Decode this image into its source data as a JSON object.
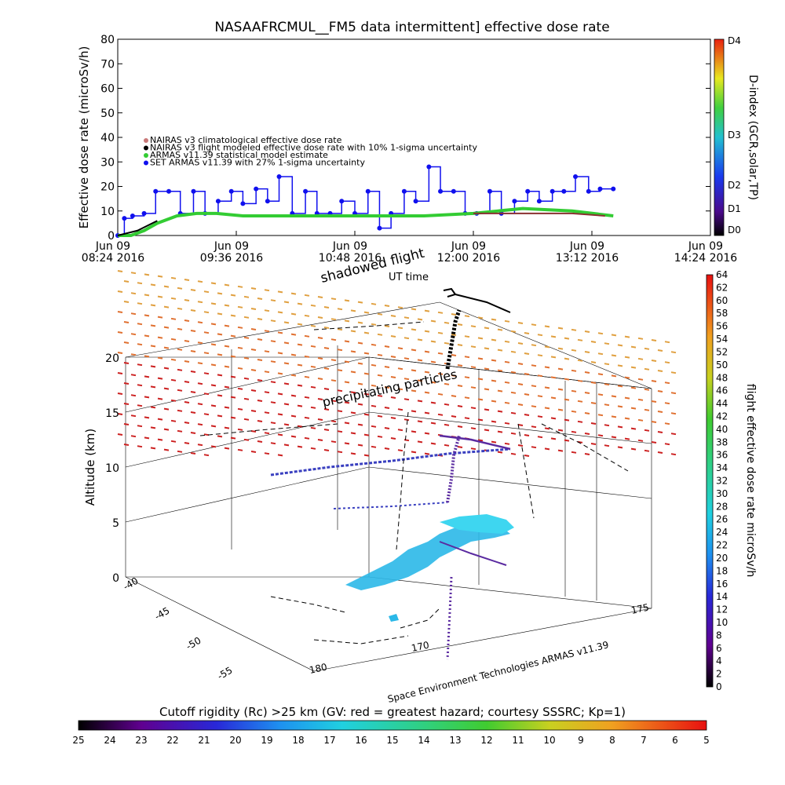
{
  "top": {
    "title": "NASAAFRCMUL__FM5 data intermittent] effective dose rate",
    "ylabel": "Effective dose rate (microSv/h)",
    "yticks": [
      0,
      10,
      20,
      30,
      40,
      50,
      60,
      70,
      80
    ],
    "xticks": [
      {
        "date": "Jun 09",
        "time": "08:24 2016"
      },
      {
        "date": "Jun 09",
        "time": "09:36 2016"
      },
      {
        "date": "Jun 09",
        "time": "10:48 2016"
      },
      {
        "date": "Jun 09",
        "time": "12:00 2016"
      },
      {
        "date": "Jun 09",
        "time": "13:12 2016"
      },
      {
        "date": "Jun 09",
        "time": "14:24 2016"
      }
    ],
    "legend": [
      {
        "label": "NAIRAS v3 climatological effective dose rate",
        "color": "#c87878"
      },
      {
        "label": "NAIRAS v3 flight modeled effective dose rate with 10% 1-sigma uncertainty",
        "color": "#000000"
      },
      {
        "label": "ARMAS v11.39 statistical model estimate",
        "color": "#33cc33"
      },
      {
        "label": "SET ARMAS v11.39 with 27% 1-sigma uncertainty",
        "color": "#1010ee"
      }
    ],
    "dindex": {
      "label": "D-index (GCR,solar,TP)",
      "ticks": [
        "D4",
        "D3",
        "D2",
        "D1",
        "D0"
      ]
    }
  },
  "chart_data": [
    {
      "type": "scatter",
      "title": "NASAAFRCMUL__FM5 data intermittent] effective dose rate",
      "ylabel": "Effective dose rate (microSv/h)",
      "xlabel": "",
      "xlim": [
        "2016-06-09 08:24",
        "2016-06-09 14:24"
      ],
      "ylim": [
        0,
        80
      ],
      "x_units": "UT",
      "series": [
        {
          "name": "SET ARMAS v11.39 with 27% 1-sigma uncertainty",
          "x": [
            "08:24",
            "08:28",
            "08:33",
            "08:40",
            "08:47",
            "08:55",
            "09:02",
            "09:10",
            "09:17",
            "09:25",
            "09:33",
            "09:40",
            "09:48",
            "09:55",
            "10:02",
            "10:10",
            "10:18",
            "10:25",
            "10:33",
            "10:40",
            "10:48",
            "10:56",
            "11:03",
            "11:10",
            "11:18",
            "11:25",
            "11:33",
            "11:40",
            "11:48",
            "11:55",
            "12:02",
            "12:10",
            "12:17",
            "12:25",
            "12:33",
            "12:40",
            "12:48",
            "12:55",
            "13:02",
            "13:10",
            "13:17",
            "13:25"
          ],
          "y": [
            0,
            7,
            8,
            9,
            18,
            18,
            9,
            18,
            9,
            14,
            18,
            13,
            19,
            14,
            24,
            9,
            18,
            9,
            9,
            14,
            9,
            18,
            3,
            9,
            18,
            14,
            28,
            18,
            18,
            9,
            9,
            18,
            9,
            14,
            18,
            14,
            18,
            18,
            24,
            18,
            19,
            19
          ]
        },
        {
          "name": "ARMAS v11.39 statistical model estimate",
          "x": [
            "08:24",
            "08:32",
            "08:40",
            "08:48",
            "09:00",
            "09:12",
            "09:24",
            "09:40",
            "10:00",
            "10:30",
            "11:00",
            "11:30",
            "12:00",
            "12:30",
            "13:00",
            "13:25"
          ],
          "y": [
            0,
            0,
            2,
            5,
            8,
            9,
            9,
            8,
            8,
            8,
            8,
            8,
            9,
            11,
            10,
            8
          ]
        },
        {
          "name": "NAIRAS v3 flight modeled effective dose rate with 10% 1-sigma uncertainty",
          "x": [
            "08:24",
            "08:30",
            "08:36",
            "08:42",
            "08:48"
          ],
          "y": [
            0,
            1,
            2,
            4,
            6
          ]
        },
        {
          "name": "NAIRAS v3 climatological effective dose rate",
          "x": [
            "12:00",
            "12:20",
            "12:40",
            "13:00",
            "13:20"
          ],
          "y": [
            9,
            9,
            9,
            9,
            8
          ]
        }
      ]
    },
    {
      "type": "scatter",
      "zlabel": "Altitude (km)",
      "zlim": [
        0,
        20
      ],
      "zticks": [
        0,
        5,
        10,
        15,
        20
      ],
      "lat_ticks": [
        -40,
        -45,
        -50,
        -55
      ],
      "lon_ticks": [
        180,
        170,
        175
      ],
      "annotations": [
        "shadowed flight",
        "UT time",
        "precipitating particles"
      ],
      "right_colorbar": {
        "label": "flight effective dose rate microSv/h",
        "min": 0,
        "max": 64,
        "step": 2
      },
      "bottom_colorbar": {
        "label": "Cutoff rigidity (Rc) >25 km (GV: red = greatest hazard; courtesy SSSRC; Kp=1)",
        "ticks": [
          25,
          24,
          23,
          22,
          21,
          20,
          19,
          18,
          17,
          16,
          15,
          14,
          13,
          12,
          11,
          10,
          9,
          8,
          7,
          6,
          5
        ]
      }
    }
  ],
  "bottom": {
    "zlabel": "Altitude (km)",
    "shadowed": "shadowed flight",
    "uttime": "UT time",
    "precip": "precipitating particles",
    "credit": "Space Environment Technologies ARMAS v11.39",
    "right_label": "flight effective dose rate microSv/h",
    "rc_label": "Cutoff rigidity (Rc) >25 km (GV: red = greatest hazard; courtesy SSSRC; Kp=1)"
  }
}
